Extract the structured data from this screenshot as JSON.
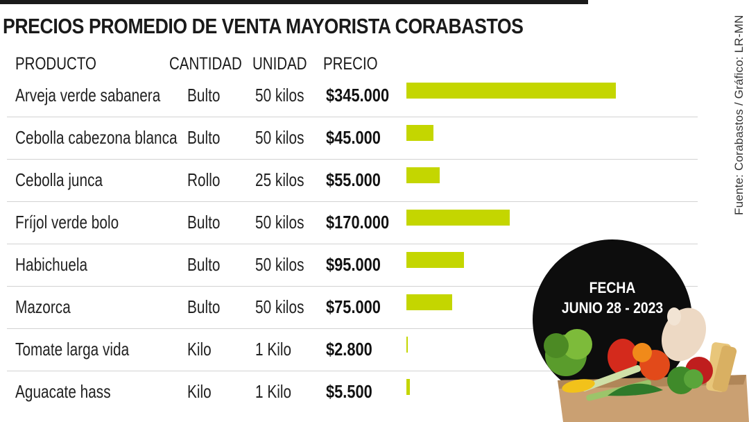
{
  "title": "PRECIOS PROMEDIO DE VENTA MAYORISTA CORABASTOS",
  "source": "Fuente: Corabastos / Gráfico: LR-MN",
  "headers": {
    "product": "PRODUCTO",
    "quantity": "CANTIDAD",
    "unit": "UNIDAD",
    "price": "PRECIO"
  },
  "rows": [
    {
      "product": "Arveja verde sabanera",
      "quantity": "Bulto",
      "unit": "50 kilos",
      "price": "$345.000"
    },
    {
      "product": "Cebolla cabezona blanca",
      "quantity": "Bulto",
      "unit": "50 kilos",
      "price": "$45.000"
    },
    {
      "product": "Cebolla junca",
      "quantity": "Rollo",
      "unit": "25 kilos",
      "price": "$55.000"
    },
    {
      "product": "Fríjol verde bolo",
      "quantity": "Bulto",
      "unit": "50 kilos",
      "price": "$170.000"
    },
    {
      "product": "Habichuela",
      "quantity": "Bulto",
      "unit": "50 kilos",
      "price": "$95.000"
    },
    {
      "product": "Mazorca",
      "quantity": "Bulto",
      "unit": "50 kilos",
      "price": "$75.000"
    },
    {
      "product": "Tomate larga vida",
      "quantity": "Kilo",
      "unit": "1 Kilo",
      "price": "$2.800"
    },
    {
      "product": "Aguacate hass",
      "quantity": "Kilo",
      "unit": "1 Kilo",
      "price": "$5.500"
    }
  ],
  "badge": {
    "label": "FECHA",
    "date": "JUNIO 28  -  2023"
  },
  "colors": {
    "bar": "#c4d600",
    "rule": "#1a1a1a",
    "badge": "#0d0d0d",
    "separator": "#d2d2d2"
  },
  "chart_data": {
    "type": "bar",
    "orientation": "horizontal",
    "title": "PRECIOS PROMEDIO DE VENTA MAYORISTA CORABASTOS",
    "categories": [
      "Arveja verde sabanera",
      "Cebolla cabezona blanca",
      "Cebolla junca",
      "Fríjol verde bolo",
      "Habichuela",
      "Mazorca",
      "Tomate larga vida",
      "Aguacate hass"
    ],
    "values": [
      345000,
      45000,
      55000,
      170000,
      95000,
      75000,
      2800,
      5500
    ],
    "xlim": [
      0,
      345000
    ],
    "grid": false,
    "legend": "none"
  }
}
